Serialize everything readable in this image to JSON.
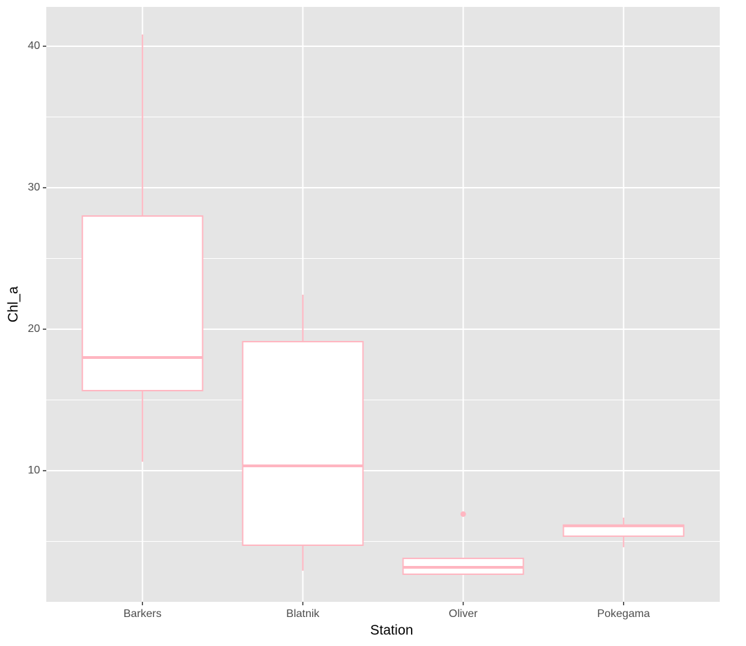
{
  "chart_data": {
    "type": "boxplot",
    "x_label": "Station",
    "y_label": "Chl_a",
    "categories": [
      "Barkers",
      "Blatnik",
      "Oliver",
      "Pokegama"
    ],
    "boxes": [
      {
        "min": 10.63,
        "q1": 15.66,
        "median": 18.0,
        "q3": 28.0,
        "max": 40.83,
        "outliers": []
      },
      {
        "min": 2.93,
        "q1": 4.73,
        "median": 10.34,
        "q3": 19.12,
        "max": 22.44,
        "outliers": []
      },
      {
        "min": 2.68,
        "q1": 2.68,
        "median": 3.17,
        "q3": 3.8,
        "max": 3.8,
        "outliers": [
          6.93
        ]
      },
      {
        "min": 4.59,
        "q1": 5.37,
        "median": 6.1,
        "q3": 6.15,
        "max": 6.68,
        "outliers": []
      }
    ],
    "color": "#ffb6c1",
    "fill": "#ffffff",
    "ylim": [
      0.73,
      42.78
    ],
    "yticks": [
      10,
      20,
      30,
      40
    ],
    "yminor": [
      5,
      15,
      25,
      35
    ],
    "grid": true
  }
}
